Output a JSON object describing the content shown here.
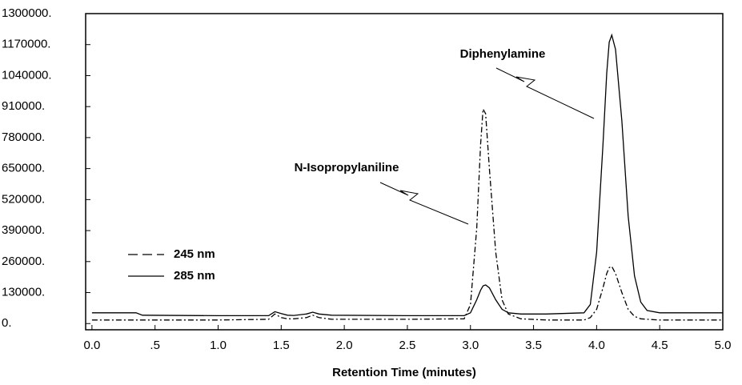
{
  "chart_data": {
    "type": "line",
    "xlabel": "Retention Time (minutes)",
    "x": [
      0,
      0.35,
      0.4,
      1.0,
      1.4,
      1.45,
      1.5,
      1.55,
      1.6,
      1.7,
      1.75,
      1.8,
      1.9,
      2.5,
      2.95,
      3.0,
      3.05,
      3.08,
      3.1,
      3.12,
      3.15,
      3.2,
      3.25,
      3.3,
      3.4,
      3.6,
      3.9,
      3.95,
      4.0,
      4.05,
      4.08,
      4.1,
      4.12,
      4.15,
      4.2,
      4.25,
      4.3,
      4.35,
      4.4,
      4.5,
      5.0
    ],
    "series": [
      {
        "name": "245 nm",
        "color": "#000000",
        "style": "dashed",
        "values": [
          15000,
          15000,
          15000,
          15000,
          18000,
          40000,
          25000,
          20000,
          20000,
          25000,
          35000,
          25000,
          18000,
          18000,
          20000,
          80000,
          400000,
          750000,
          900000,
          880000,
          650000,
          300000,
          100000,
          40000,
          20000,
          15000,
          15000,
          25000,
          60000,
          150000,
          210000,
          235000,
          240000,
          210000,
          130000,
          60000,
          30000,
          20000,
          18000,
          15000,
          15000
        ]
      },
      {
        "name": "285 nm",
        "color": "#000000",
        "style": "solid",
        "values": [
          45000,
          45000,
          35000,
          33000,
          33000,
          50000,
          42000,
          35000,
          34000,
          40000,
          48000,
          40000,
          35000,
          33000,
          33000,
          45000,
          100000,
          140000,
          158000,
          162000,
          150000,
          100000,
          60000,
          45000,
          40000,
          40000,
          45000,
          80000,
          300000,
          750000,
          1050000,
          1180000,
          1210000,
          1150000,
          850000,
          450000,
          200000,
          90000,
          55000,
          45000,
          45000
        ]
      }
    ],
    "annotations": [
      "N-Isopropylaniline",
      "Diphenylamine"
    ],
    "xlim": [
      -0.05,
      5.0
    ],
    "ylim": [
      -26000,
      1300000
    ],
    "xticks": [
      {
        "value": 0,
        "label": "0.0"
      },
      {
        "value": 0.5,
        "label": ".5"
      },
      {
        "value": 1,
        "label": "1.0"
      },
      1.5,
      {
        "value": 2,
        "label": "2.0"
      },
      2.5,
      {
        "value": 3,
        "label": "3.0"
      },
      3.5,
      {
        "value": 4,
        "label": "4.0"
      },
      4.5,
      {
        "value": 5,
        "label": "5.0"
      }
    ],
    "yticks": [
      {
        "value": 0,
        "label": "0."
      },
      {
        "value": 130000,
        "label": "130000."
      },
      {
        "value": 260000,
        "label": "260000."
      },
      {
        "value": 390000,
        "label": "390000."
      },
      {
        "value": 520000,
        "label": "520000."
      },
      {
        "value": 650000,
        "label": "650000."
      },
      {
        "value": 780000,
        "label": "780000."
      },
      {
        "value": 910000,
        "label": "910000."
      },
      {
        "value": 1040000,
        "label": "1040000."
      },
      {
        "value": 1170000,
        "label": "1170000."
      },
      {
        "value": {
          "value": 1300000
        },
        "label": "1300000."
      }
    ],
    "grid": false
  }
}
